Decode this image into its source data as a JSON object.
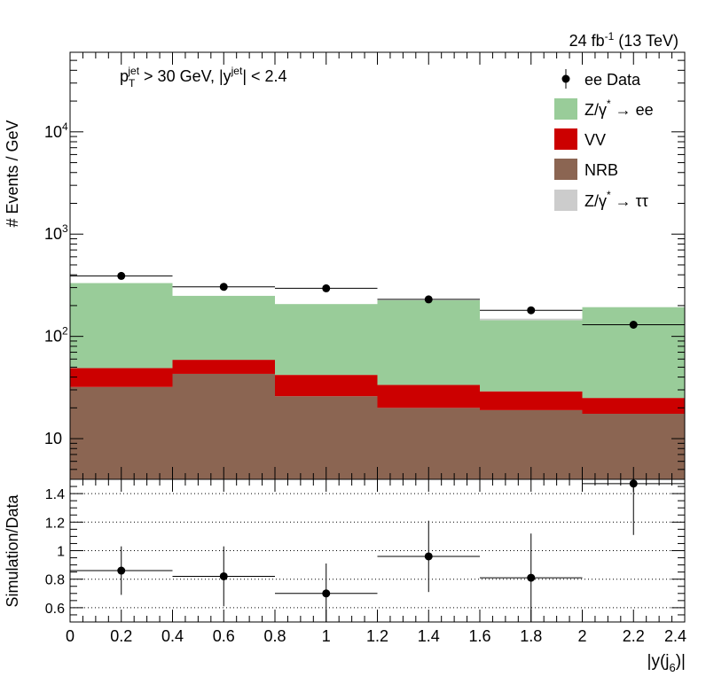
{
  "chart_data": [
    {
      "type": "bar",
      "panel": "main",
      "stacked": true,
      "y_scale": "log",
      "ylim": [
        4,
        60000
      ],
      "xlim": [
        0,
        2.4
      ],
      "ylabel": "# Events / GeV",
      "lumi_label": {
        "base": "24 fb",
        "sup": "-1",
        "rest": " (13 TeV)"
      },
      "cut_label": {
        "p": "p",
        "p_sub": "T",
        "p_sup": "jet",
        "mid": " > 30 GeV,  |y",
        "y_sup": "jet",
        "end": "| < 2.4"
      },
      "bin_edges": [
        0,
        0.4,
        0.8,
        1.2,
        1.6,
        2.0,
        2.4
      ],
      "series": [
        {
          "name": "NRB",
          "color": "#8b6552",
          "values": [
            32,
            43,
            26,
            20,
            19,
            17.5
          ]
        },
        {
          "name": "VV",
          "color": "#cc0000",
          "values": [
            17,
            16,
            16,
            13.5,
            10,
            7.5
          ]
        },
        {
          "name": "Z/γ* → ee",
          "color": "#99cc99",
          "values": [
            283,
            190,
            165,
            192,
            115,
            168
          ]
        },
        {
          "name": "Z/γ* → ττ",
          "color": "#cccccc",
          "values": [
            0,
            0,
            0,
            0,
            5,
            0
          ]
        }
      ],
      "data": {
        "name": "ee Data",
        "x": [
          0.2,
          0.6,
          1.0,
          1.4,
          1.8,
          2.2
        ],
        "y": [
          390,
          305,
          295,
          230,
          180,
          130
        ],
        "err": [
          20,
          17,
          17,
          15,
          13,
          11
        ]
      },
      "ytick_labels": [
        "10",
        "10",
        "10",
        "10"
      ],
      "ytick_sups": [
        "",
        "2",
        "3",
        "4"
      ],
      "legend": [
        {
          "label": "ee Data",
          "sup": "",
          "rest": "",
          "kind": "marker"
        },
        {
          "label": "Z/γ",
          "sup": "*",
          "rest": " → ee",
          "kind": "box",
          "color": "#99cc99"
        },
        {
          "label": "VV",
          "sup": "",
          "rest": "",
          "kind": "box",
          "color": "#cc0000"
        },
        {
          "label": "NRB",
          "sup": "",
          "rest": "",
          "kind": "box",
          "color": "#8b6552"
        },
        {
          "label": "Z/γ",
          "sup": "*",
          "rest": " → ττ",
          "kind": "box",
          "color": "#cccccc"
        }
      ],
      "legend_position": "top-right"
    },
    {
      "type": "scatter",
      "panel": "ratio",
      "ylabel": "Simulation/Data",
      "ylim": [
        0.5,
        1.5
      ],
      "xlim": [
        0,
        2.4
      ],
      "x": [
        0.2,
        0.6,
        1.0,
        1.4,
        1.8,
        2.2
      ],
      "xerr": 0.2,
      "y": [
        0.86,
        0.82,
        0.7,
        0.96,
        0.81,
        1.47
      ],
      "yerr_low": [
        0.17,
        0.21,
        0.21,
        0.25,
        0.31,
        0.36
      ],
      "yerr_high": [
        0.17,
        0.21,
        0.21,
        0.25,
        0.31,
        0.36
      ],
      "ytick_labels": [
        "0.6",
        "0.8",
        "1",
        "1.2",
        "1.4"
      ],
      "ytick_values": [
        0.6,
        0.8,
        1.0,
        1.2,
        1.4
      ],
      "grid": true,
      "xlabel": {
        "base": "|y(j",
        "sub": "6",
        "end": ")|"
      },
      "xtick_labels": [
        "0",
        "0.2",
        "0.4",
        "0.6",
        "0.8",
        "1",
        "1.2",
        "1.4",
        "1.6",
        "1.8",
        "2",
        "2.2",
        "2.4"
      ]
    }
  ]
}
